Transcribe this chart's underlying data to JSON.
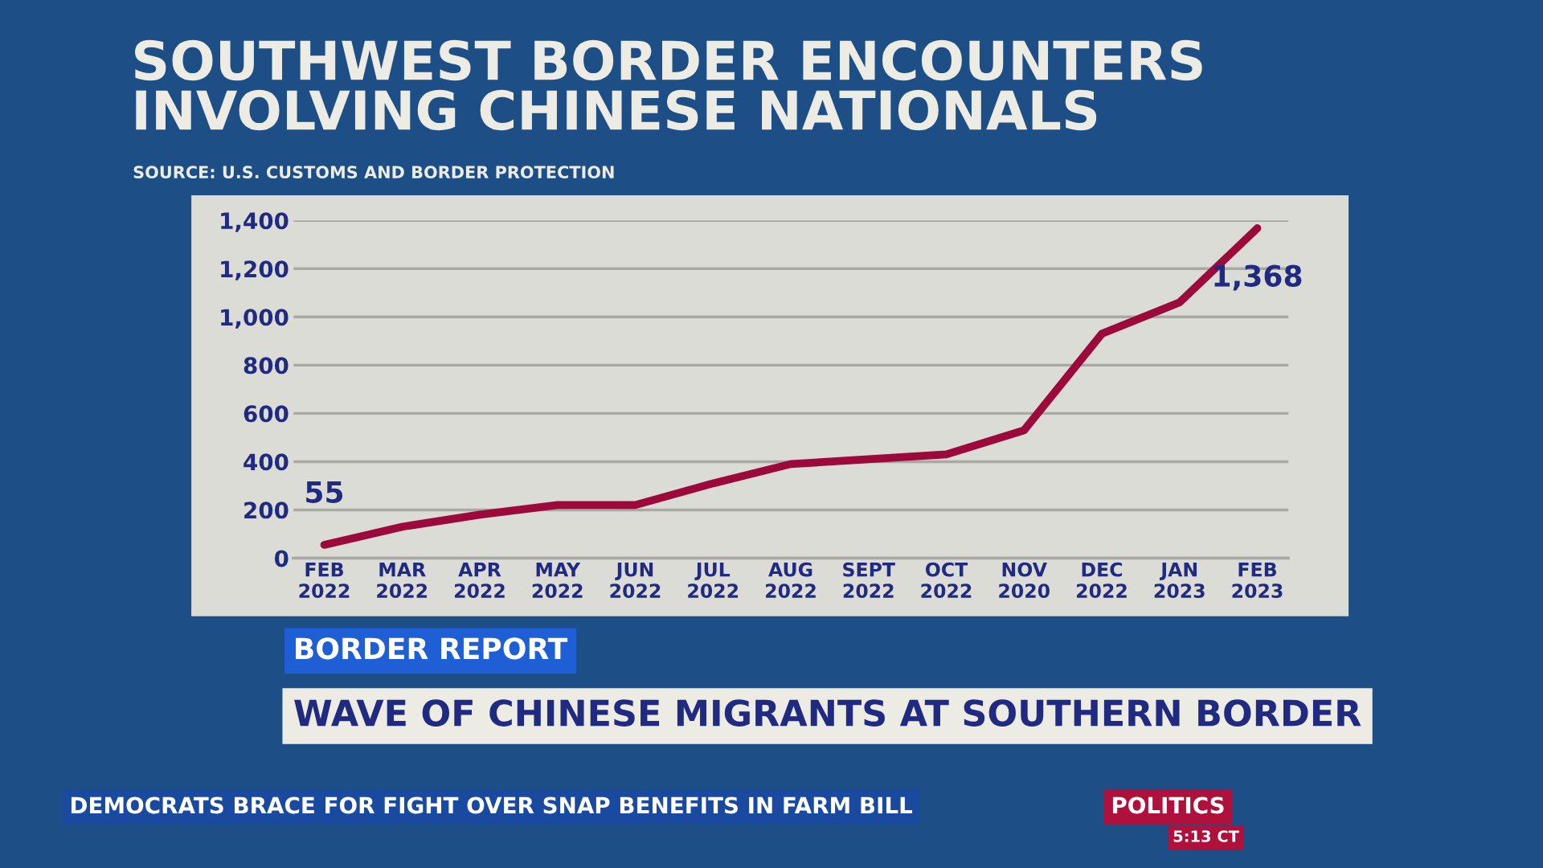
{
  "chart_data": {
    "type": "line",
    "title": "SOUTHWEST BORDER ENCOUNTERS\nINVOLVING CHINESE NATIONALS",
    "subtitle": "SOURCE: U.S. CUSTOMS AND BORDER PROTECTION",
    "categories": [
      "FEB\n2022",
      "MAR\n2022",
      "APR\n2022",
      "MAY\n2022",
      "JUN\n2022",
      "JUL\n2022",
      "AUG\n2022",
      "SEPT\n2022",
      "OCT\n2022",
      "NOV\n2020",
      "DEC\n2022",
      "JAN\n2023",
      "FEB\n2023"
    ],
    "series": [
      {
        "color": "#9b0a3a",
        "values": [
          55,
          130,
          180,
          220,
          220,
          310,
          390,
          410,
          430,
          530,
          930,
          1060,
          1368
        ],
        "value_labels": [
          "55",
          null,
          null,
          null,
          null,
          null,
          null,
          null,
          null,
          null,
          null,
          null,
          "1,368"
        ]
      }
    ],
    "ylim": [
      0,
      1400
    ],
    "yticks": [
      0,
      {
        "value": 200,
        "label": "200"
      },
      {
        "value": 400,
        "label": "400"
      },
      {
        "value": 600,
        "label": "600"
      },
      {
        "value": 800,
        "label": "800"
      },
      {
        "value": 1000,
        "label": "1,000"
      },
      {
        "value": 1200,
        "label": "1,200"
      },
      {
        "value": 1400,
        "label": "1,400"
      }
    ],
    "grid": "y",
    "line_style": "solid",
    "annotations": [
      "BORDER REPORT",
      "WAVE OF CHINESE MIGRANTS AT SOUTHERN BORDER",
      "DEMOCRATS BRACE FOR FIGHT OVER SNAP BENEFITS IN FARM BILL",
      "POLITICS",
      "5:13 CT"
    ]
  }
}
